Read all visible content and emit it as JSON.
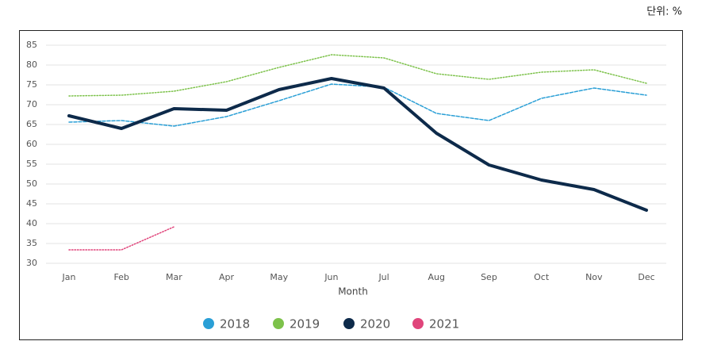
{
  "unit_label": "단위: %",
  "chart_data": {
    "type": "line",
    "x_label": "Month",
    "categories": [
      "Jan",
      "Feb",
      "Mar",
      "Apr",
      "May",
      "Jun",
      "Jul",
      "Aug",
      "Sep",
      "Oct",
      "Nov",
      "Dec"
    ],
    "series": [
      {
        "name": "2018",
        "color": "#2a9fd6",
        "line_style": "dashed",
        "values": [
          65.6,
          66,
          64.6,
          67,
          71,
          75.2,
          74.4,
          67.8,
          66,
          71.6,
          74.2,
          72.4
        ]
      },
      {
        "name": "2019",
        "color": "#7dc24b",
        "line_style": "dotted",
        "values": [
          72.2,
          72.4,
          73.4,
          75.8,
          79.4,
          82.6,
          81.8,
          77.8,
          76.4,
          78.2,
          78.8,
          75.4
        ]
      },
      {
        "name": "2020",
        "color": "#0d2a4a",
        "line_style": "solid",
        "values": [
          67.2,
          64,
          69,
          68.6,
          73.8,
          76.6,
          74.2,
          62.8,
          54.8,
          51,
          48.6,
          43.4
        ]
      },
      {
        "name": "2021",
        "color": "#e0457b",
        "line_style": "dotted",
        "values": [
          33.4,
          33.4,
          39.2,
          null,
          null,
          null,
          null,
          null,
          null,
          null,
          null,
          null
        ]
      }
    ],
    "ylim": [
      30,
      85
    ],
    "yticks": [
      30,
      35,
      40,
      45,
      50,
      55,
      60,
      65,
      70,
      75,
      80,
      85
    ],
    "grid": true,
    "legend": "bottom"
  }
}
